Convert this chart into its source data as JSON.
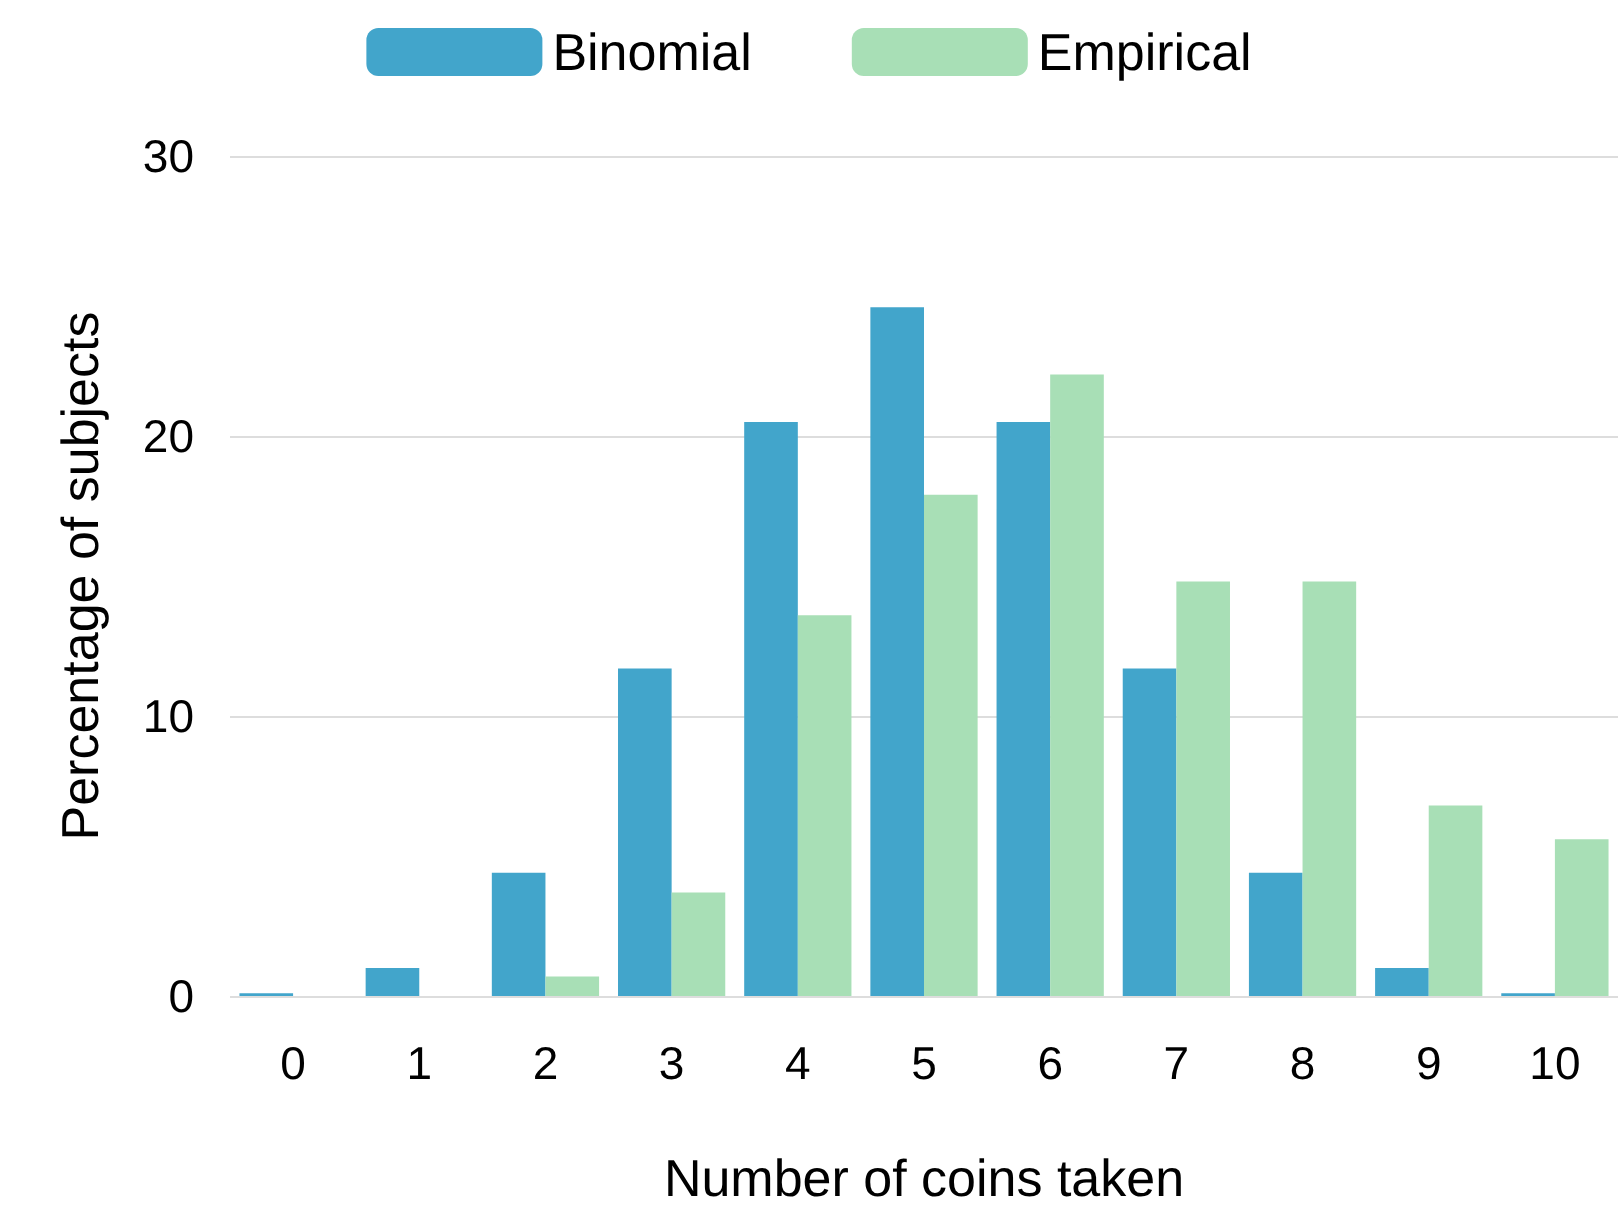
{
  "chart_data": {
    "type": "bar",
    "xlabel": "Number of coins taken",
    "ylabel": "Percentage of subjects",
    "categories": [
      "0",
      "1",
      "2",
      "3",
      "4",
      "5",
      "6",
      "7",
      "8",
      "9",
      "10"
    ],
    "series": [
      {
        "name": "Binomial",
        "color": "#42a5cb",
        "values": [
          0.1,
          1.0,
          4.4,
          11.7,
          20.5,
          24.6,
          20.5,
          11.7,
          4.4,
          1.0,
          0.1
        ]
      },
      {
        "name": "Empirical",
        "color": "#a8dfb6",
        "values": [
          0,
          0,
          0.7,
          3.7,
          13.6,
          17.9,
          22.2,
          14.8,
          14.8,
          6.8,
          5.6
        ]
      }
    ],
    "ylim": [
      0,
      30
    ],
    "yticks": [
      0,
      10,
      20,
      30
    ],
    "grid": "y",
    "legend": "top"
  }
}
